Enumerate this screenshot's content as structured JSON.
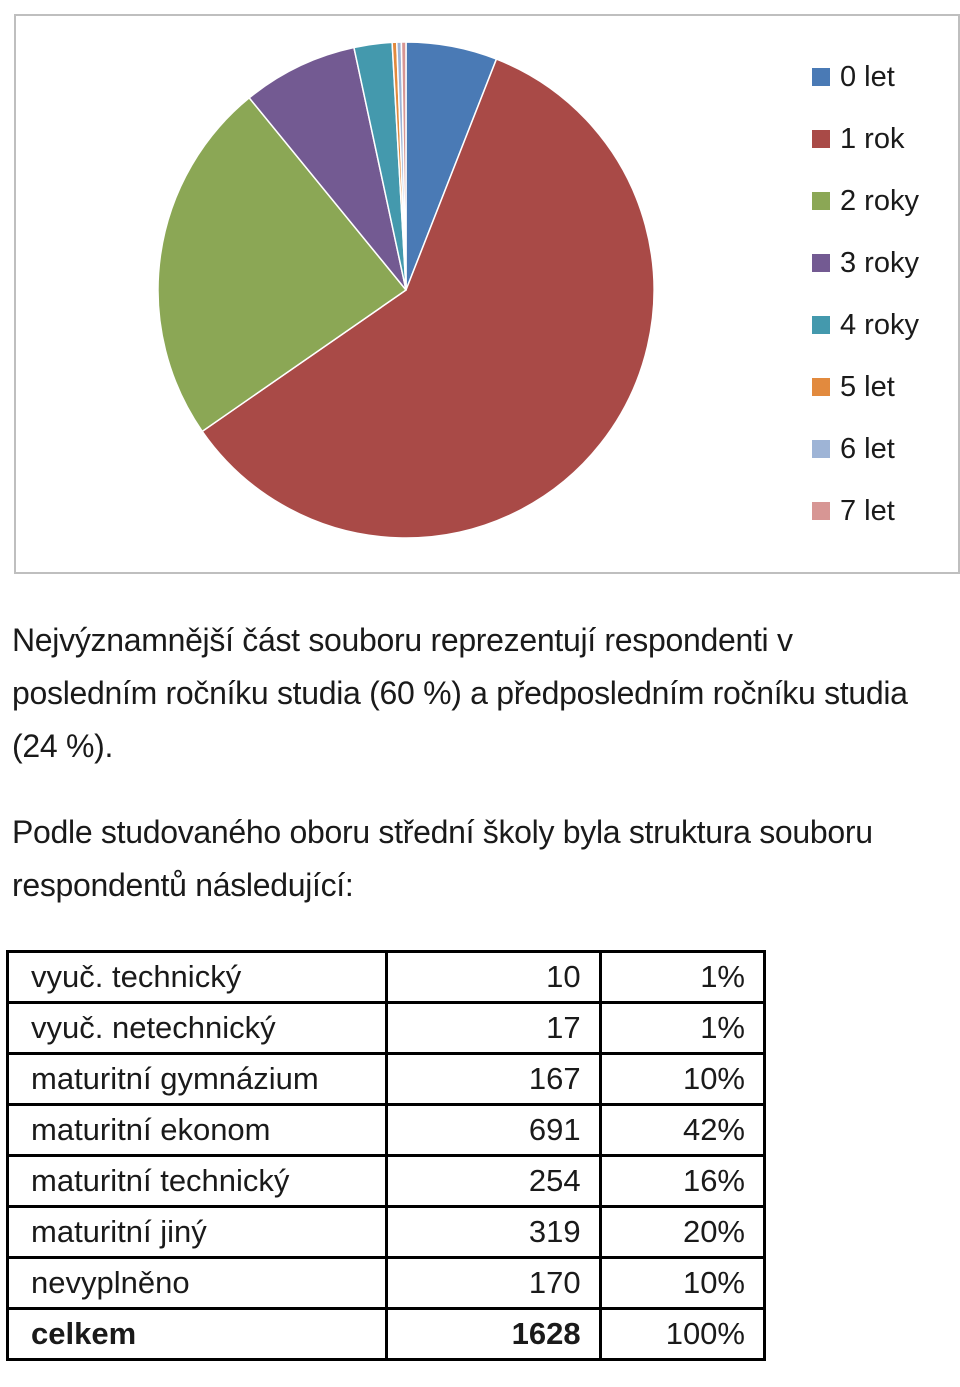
{
  "chart_data": {
    "type": "pie",
    "title": "",
    "legend_position": "right",
    "slices": [
      {
        "label": "0 let",
        "value": 6,
        "color": "#4a7ab5"
      },
      {
        "label": "1 rok",
        "value": 60,
        "color": "#a94a47"
      },
      {
        "label": "2 roky",
        "value": 24,
        "color": "#8ba755"
      },
      {
        "label": "3 roky",
        "value": 7.6,
        "color": "#735a92"
      },
      {
        "label": "4 roky",
        "value": 2.5,
        "color": "#4499ad"
      },
      {
        "label": "5 let",
        "value": 0.3,
        "color": "#e28a3e"
      },
      {
        "label": "6 let",
        "value": 0.3,
        "color": "#9eb4d6"
      },
      {
        "label": "7 let",
        "value": 0.3,
        "color": "#d79694"
      }
    ]
  },
  "text": {
    "para1": "Nejvýznamnější část souboru reprezentují respondenti v posledním ročníku studia (60 %) a předposledním ročníku studia (24 %).",
    "para2": "Podle studovaného oboru střední školy byla struktura souboru respondentů následující:"
  },
  "table": {
    "rows": [
      {
        "label": "vyuč. technický",
        "count": "10",
        "pct": "1%"
      },
      {
        "label": "vyuč. netechnický",
        "count": "17",
        "pct": "1%"
      },
      {
        "label": "maturitní gymnázium",
        "count": "167",
        "pct": "10%"
      },
      {
        "label": "maturitní ekonom",
        "count": "691",
        "pct": "42%"
      },
      {
        "label": "maturitní technický",
        "count": "254",
        "pct": "16%"
      },
      {
        "label": "maturitní jiný",
        "count": "319",
        "pct": "20%"
      },
      {
        "label": "nevyplněno",
        "count": "170",
        "pct": "10%"
      }
    ],
    "total": {
      "label": "celkem",
      "count": "1628",
      "pct": "100%"
    }
  }
}
